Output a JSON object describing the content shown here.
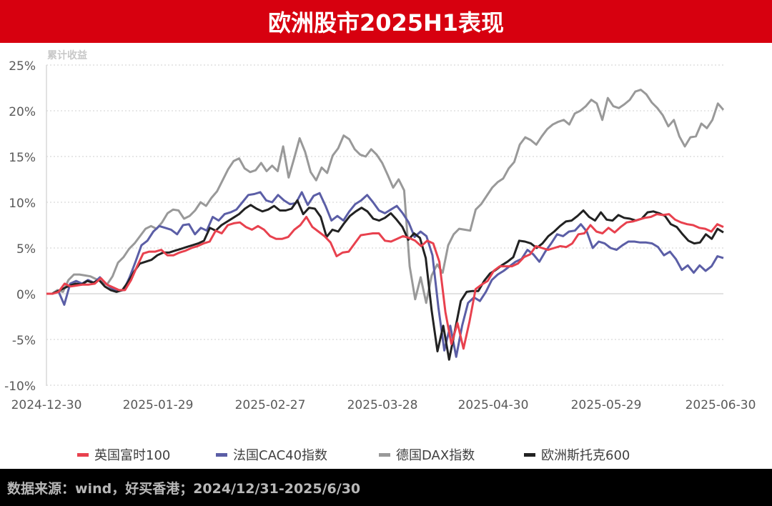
{
  "header": {
    "title": "欧洲股市2025H1表现"
  },
  "footer": {
    "source": "数据来源：wind，好买香港；2024/12/31-2025/6/30"
  },
  "chart_data": {
    "type": "line",
    "title": "欧洲股市2025H1表现",
    "ylabel": "累计收益",
    "xlabel": "",
    "ylim": [
      -10,
      25
    ],
    "yticks": [
      "25%",
      "20%",
      "15%",
      "10%",
      "5%",
      "0%",
      "-5%",
      "-10%"
    ],
    "ytick_values": [
      25,
      20,
      15,
      10,
      5,
      0,
      -5,
      -10
    ],
    "xticks": [
      "2024-12-30",
      "2025-01-29",
      "2025-02-27",
      "2025-03-28",
      "2025-04-30",
      "2025-05-29",
      "2025-06-30"
    ],
    "grid": "horizontal dotted",
    "legend_position": "bottom",
    "series": [
      {
        "name": "英国富时100",
        "color": "#e8414e",
        "values": [
          0,
          0,
          0.2,
          1.1,
          0.8,
          0.9,
          1.0,
          1.0,
          1.1,
          1.7,
          1.0,
          0.7,
          0.4,
          0.4,
          1.5,
          3.0,
          4.4,
          4.6,
          4.6,
          4.8,
          4.2,
          4.2,
          4.5,
          4.7,
          5.0,
          5.2,
          5.5,
          5.7,
          6.9,
          6.6,
          7.5,
          7.7,
          7.8,
          7.3,
          7.0,
          7.4,
          7.0,
          6.3,
          6.0,
          6.0,
          6.2,
          7.0,
          7.5,
          8.4,
          7.3,
          6.8,
          6.3,
          5.6,
          4.1,
          4.5,
          4.6,
          5.5,
          6.4,
          6.5,
          6.6,
          6.6,
          5.8,
          5.7,
          6.0,
          6.3,
          6.1,
          5.8,
          5.2,
          5.8,
          5.5,
          3.5,
          -2.0,
          -5.5,
          -3.2,
          -6.0,
          -3.0,
          0.5,
          1.0,
          1.4,
          2.5,
          3.0,
          3.0,
          3.0,
          3.3,
          4.0,
          4.3,
          5.2,
          5.0,
          4.8,
          5.0,
          5.2,
          5.1,
          5.5,
          6.5,
          6.6,
          7.5,
          6.8,
          6.6,
          7.2,
          6.7,
          7.3,
          7.8,
          7.9,
          8.1,
          8.3,
          8.4,
          8.7,
          8.6,
          8.7,
          8.1,
          7.8,
          7.6,
          7.5,
          7.2,
          7.1,
          6.8,
          7.6,
          7.3
        ]
      },
      {
        "name": "法国CAC40指数",
        "color": "#5b5ea6",
        "values": [
          0,
          0,
          0.3,
          -1.2,
          1.1,
          1.4,
          1.1,
          1.5,
          1.2,
          1.8,
          1.1,
          0.6,
          0.3,
          0.4,
          1.8,
          3.5,
          5.3,
          5.8,
          6.8,
          7.4,
          7.2,
          7.0,
          6.5,
          7.5,
          7.6,
          6.5,
          7.2,
          6.9,
          8.4,
          8.0,
          8.7,
          8.9,
          9.2,
          10.0,
          10.8,
          10.9,
          11.1,
          10.2,
          10.0,
          10.8,
          10.2,
          9.8,
          9.9,
          11.1,
          9.7,
          10.7,
          11.0,
          9.6,
          8.0,
          8.5,
          8.0,
          9.0,
          9.8,
          10.2,
          10.8,
          10.0,
          9.1,
          8.8,
          9.2,
          9.6,
          8.8,
          7.8,
          6.2,
          6.8,
          6.3,
          4.2,
          -1.5,
          -6.2,
          -3.5,
          -6.9,
          -3.5,
          -1.0,
          -0.4,
          -0.8,
          0.2,
          1.5,
          2.1,
          2.5,
          3.0,
          3.5,
          3.8,
          4.8,
          4.3,
          3.5,
          4.6,
          5.5,
          6.5,
          6.3,
          6.8,
          6.9,
          7.6,
          6.8,
          5.0,
          5.7,
          5.5,
          5.0,
          4.8,
          5.3,
          5.7,
          5.7,
          5.6,
          5.6,
          5.5,
          5.1,
          4.2,
          4.6,
          3.8,
          2.6,
          3.1,
          2.3,
          3.1,
          2.5,
          3.0,
          4.1,
          3.9
        ]
      },
      {
        "name": "德国DAX指数",
        "color": "#999999",
        "values": [
          0,
          0,
          0.4,
          0.2,
          1.5,
          2.1,
          2.1,
          2.0,
          1.9,
          1.6,
          1.3,
          1.0,
          1.9,
          3.4,
          4.0,
          4.9,
          5.5,
          6.3,
          7.1,
          7.4,
          7.1,
          7.8,
          8.8,
          9.2,
          9.1,
          8.2,
          8.5,
          9.1,
          10.0,
          9.6,
          10.5,
          11.2,
          12.4,
          13.6,
          14.5,
          14.8,
          13.7,
          13.3,
          13.5,
          14.3,
          13.4,
          14.0,
          13.4,
          16.1,
          12.7,
          14.8,
          17.0,
          15.5,
          13.3,
          12.4,
          13.8,
          13.2,
          15.1,
          15.9,
          17.3,
          16.9,
          15.8,
          15.2,
          15.0,
          15.8,
          15.2,
          14.3,
          13.0,
          11.6,
          12.5,
          11.3,
          3.0,
          -0.6,
          1.8,
          -1.0,
          2.0,
          3.2,
          2.3,
          5.3,
          6.5,
          7.1,
          7.0,
          6.9,
          9.2,
          9.8,
          10.7,
          11.6,
          12.2,
          12.6,
          13.7,
          14.4,
          16.3,
          17.1,
          16.8,
          16.3,
          17.2,
          18.0,
          18.5,
          18.8,
          19.0,
          18.5,
          19.7,
          20.0,
          20.5,
          21.2,
          20.8,
          19.0,
          21.4,
          20.5,
          20.3,
          20.7,
          21.2,
          22.1,
          22.3,
          21.8,
          20.9,
          20.3,
          19.5,
          18.3,
          19.0,
          17.2,
          16.1,
          17.1,
          17.2,
          18.6,
          18.1,
          19.0,
          20.8,
          20.1
        ]
      },
      {
        "name": "欧洲斯托克600",
        "color": "#222222",
        "values": [
          0,
          0,
          0.3,
          0.6,
          0.9,
          1.1,
          1.0,
          1.4,
          1.2,
          1.5,
          0.8,
          0.4,
          0.2,
          0.4,
          1.3,
          2.4,
          3.3,
          3.5,
          3.7,
          4.2,
          4.5,
          4.5,
          4.7,
          4.9,
          5.1,
          5.3,
          5.5,
          5.8,
          7.2,
          6.9,
          7.5,
          7.9,
          8.3,
          8.7,
          9.3,
          9.7,
          9.3,
          9.0,
          9.2,
          9.6,
          9.1,
          9.1,
          9.3,
          10.2,
          8.7,
          9.4,
          9.3,
          8.4,
          6.2,
          7.0,
          6.8,
          7.7,
          8.5,
          9.0,
          9.4,
          9.0,
          8.2,
          8.0,
          8.3,
          8.8,
          8.1,
          7.3,
          5.9,
          6.6,
          6.1,
          3.9,
          -1.8,
          -6.3,
          -3.5,
          -7.2,
          -4.0,
          -0.8,
          0.2,
          0.3,
          0.3,
          1.4,
          2.2,
          2.6,
          3.1,
          3.5,
          4.0,
          5.8,
          5.7,
          5.5,
          5.0,
          5.5,
          6.3,
          6.8,
          7.4,
          7.9,
          8.0,
          8.5,
          9.1,
          8.4,
          8.0,
          8.9,
          8.1,
          8.0,
          8.6,
          8.3,
          8.2,
          8.0,
          8.2,
          8.9,
          9.0,
          8.8,
          8.5,
          7.6,
          7.3,
          6.5,
          5.8,
          5.5,
          5.6,
          6.5,
          6.0,
          7.1,
          6.7
        ]
      }
    ]
  }
}
